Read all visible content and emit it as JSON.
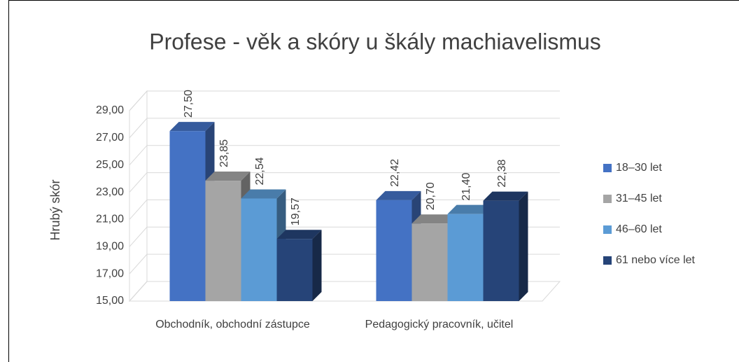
{
  "chart_data": {
    "type": "bar3d",
    "title": "Profese - věk a skóry u škály machiavelismus",
    "y_label": "Hrubý skór",
    "categories": [
      "Obchodník, obchodní zástupce",
      "Pedagogický pracovník, učitel"
    ],
    "series": [
      {
        "name": "18–30 let",
        "color": "#4472c4",
        "values": [
          27.5,
          22.42
        ],
        "value_labels": [
          "27,50",
          "22,42"
        ]
      },
      {
        "name": "31–45 let",
        "color": "#a5a5a5",
        "values": [
          23.85,
          20.7
        ],
        "value_labels": [
          "23,85",
          "20,70"
        ]
      },
      {
        "name": "46–60 let",
        "color": "#5b9bd5",
        "values": [
          22.54,
          21.4
        ],
        "value_labels": [
          "22,54",
          "21,40"
        ]
      },
      {
        "name": "61 nebo více let",
        "color": "#264478",
        "values": [
          19.57,
          22.38
        ],
        "value_labels": [
          "19,57",
          "22,38"
        ]
      }
    ],
    "ylim": [
      15,
      29
    ],
    "yticks": [
      {
        "value": 15,
        "label": "15,00"
      },
      {
        "value": 17,
        "label": "17,00"
      },
      {
        "value": 19,
        "label": "19,00"
      },
      {
        "value": 21,
        "label": "21,00"
      },
      {
        "value": 23,
        "label": "23,00"
      },
      {
        "value": 25,
        "label": "25,00"
      },
      {
        "value": 27,
        "label": "27,00"
      },
      {
        "value": 29,
        "label": "29,00"
      }
    ],
    "grid": true,
    "legend": "right"
  }
}
